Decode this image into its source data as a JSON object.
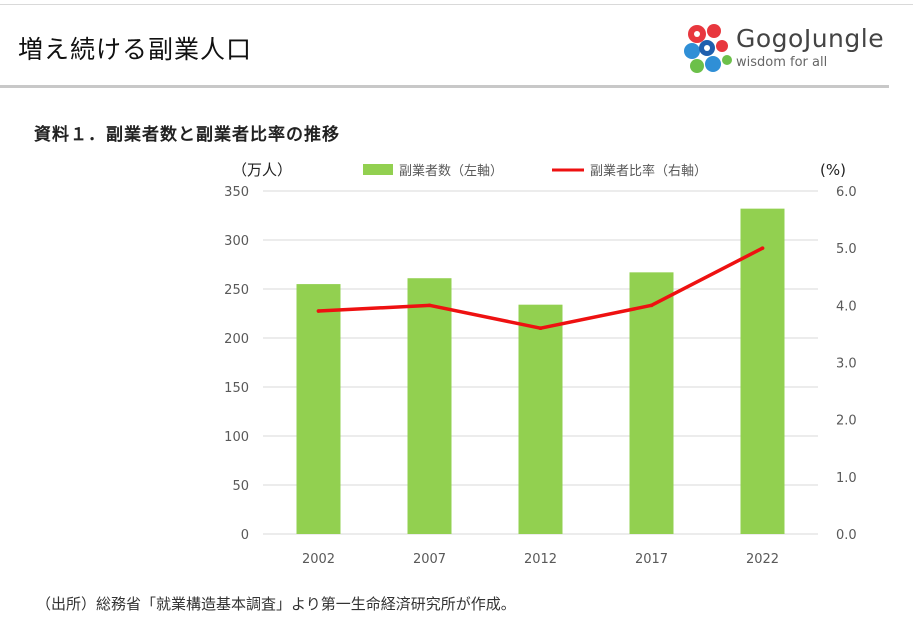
{
  "header": {
    "page_title": "増え続ける副業人口",
    "logo_name": "GogoJungle",
    "logo_tagline": "wisdom for all"
  },
  "section_title": "資料１．副業者数と副業者比率の推移",
  "source_note": "（出所）総務省「就業構造基本調査」より第一生命経済研究所が作成。",
  "colors": {
    "bar": "#92d050",
    "line": "#ee1111",
    "grid": "#d9d9d9",
    "axis_text": "#595959"
  },
  "chart_data": {
    "type": "bar",
    "categories": [
      "2002",
      "2007",
      "2012",
      "2017",
      "2022"
    ],
    "series": [
      {
        "name": "副業者数（左軸）",
        "type": "bar",
        "axis": "left",
        "values": [
          255,
          261,
          234,
          267,
          332
        ]
      },
      {
        "name": "副業者比率（右軸）",
        "type": "line",
        "axis": "right",
        "values": [
          3.9,
          4.0,
          3.6,
          4.0,
          5.0
        ]
      }
    ],
    "ylabel_left": "（万人）",
    "ylabel_right": "(%)",
    "ylim_left": [
      0,
      350
    ],
    "ylim_right": [
      0,
      6.0
    ],
    "yticks_left": [
      "0",
      "50",
      "100",
      "150",
      "200",
      "250",
      "300",
      "350"
    ],
    "yticks_right": [
      "0.0",
      "1.0",
      "2.0",
      "3.0",
      "4.0",
      "5.0",
      "6.0"
    ],
    "grid": true,
    "legend_position": "top"
  }
}
